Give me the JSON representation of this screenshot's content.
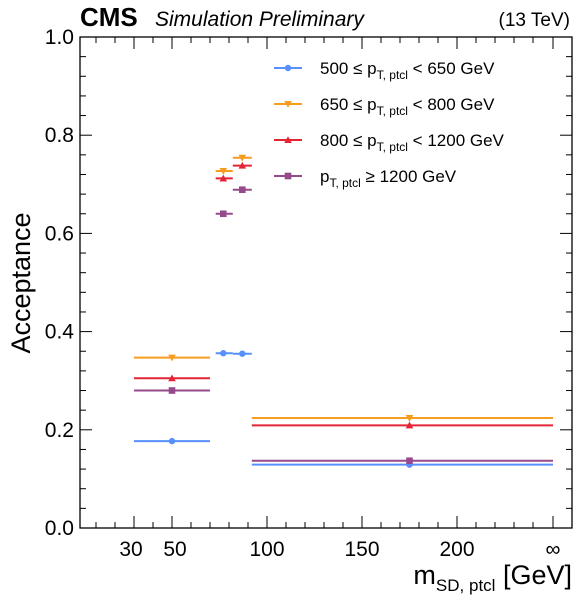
{
  "header": {
    "experiment": "CMS",
    "status": "Simulation Preliminary",
    "energy": "(13 TeV)"
  },
  "chart_data": {
    "type": "scatter",
    "xlabel": {
      "main": "m",
      "sub": "SD, ptcl",
      "unit": "[GeV]"
    },
    "ylabel": "Acceptance",
    "ylim": [
      0,
      1.0
    ],
    "yticks": [
      "0.0",
      "0.2",
      "0.4",
      "0.6",
      "0.8",
      "1.0"
    ],
    "xticks": [
      {
        "value": 30,
        "label": "30"
      },
      {
        "value": 50,
        "label": "50"
      },
      {
        "value": 100,
        "label": "100"
      },
      {
        "value": 150,
        "label": "150"
      },
      {
        "value": 200,
        "label": "200"
      },
      {
        "value": 300,
        "label": "∞"
      }
    ],
    "legend_position": "top-right",
    "series": [
      {
        "legend": {
          "pre": "500 ≤ p",
          "sub": "T, ptcl",
          "post": " < 650 GeV"
        },
        "color": "#5790fc",
        "marker": "circle",
        "points": [
          {
            "x": 50,
            "xlo": 30,
            "xhi": 70,
            "y": 0.177
          },
          {
            "x": 77,
            "xlo": 73,
            "xhi": 82,
            "y": 0.356
          },
          {
            "x": 87,
            "xlo": 82,
            "xhi": 92,
            "y": 0.355
          },
          {
            "x": 175,
            "xlo": 92,
            "xhi": 300,
            "y": 0.129
          }
        ]
      },
      {
        "legend": {
          "pre": "650 ≤ p",
          "sub": "T, ptcl",
          "post": " < 800 GeV"
        },
        "color": "#f89c20",
        "marker": "triangle-down",
        "points": [
          {
            "x": 50,
            "xlo": 30,
            "xhi": 70,
            "y": 0.347
          },
          {
            "x": 77,
            "xlo": 73,
            "xhi": 82,
            "y": 0.727
          },
          {
            "x": 87,
            "xlo": 82,
            "xhi": 92,
            "y": 0.754
          },
          {
            "x": 175,
            "xlo": 92,
            "xhi": 300,
            "y": 0.224
          }
        ]
      },
      {
        "legend": {
          "pre": "800 ≤ p",
          "sub": "T, ptcl",
          "post": " < 1200 GeV"
        },
        "color": "#e42536",
        "marker": "triangle-up",
        "points": [
          {
            "x": 50,
            "xlo": 30,
            "xhi": 70,
            "y": 0.305
          },
          {
            "x": 77,
            "xlo": 73,
            "xhi": 82,
            "y": 0.712
          },
          {
            "x": 87,
            "xlo": 82,
            "xhi": 92,
            "y": 0.738
          },
          {
            "x": 175,
            "xlo": 92,
            "xhi": 300,
            "y": 0.209
          }
        ]
      },
      {
        "legend": {
          "pre": "p",
          "sub": "T, ptcl",
          "post": " ≥ 1200 GeV"
        },
        "color": "#964a8b",
        "marker": "square",
        "points": [
          {
            "x": 50,
            "xlo": 30,
            "xhi": 70,
            "y": 0.28
          },
          {
            "x": 77,
            "xlo": 73,
            "xhi": 82,
            "y": 0.64
          },
          {
            "x": 87,
            "xlo": 82,
            "xhi": 92,
            "y": 0.689
          },
          {
            "x": 175,
            "xlo": 92,
            "xhi": 300,
            "y": 0.137
          }
        ]
      }
    ]
  }
}
